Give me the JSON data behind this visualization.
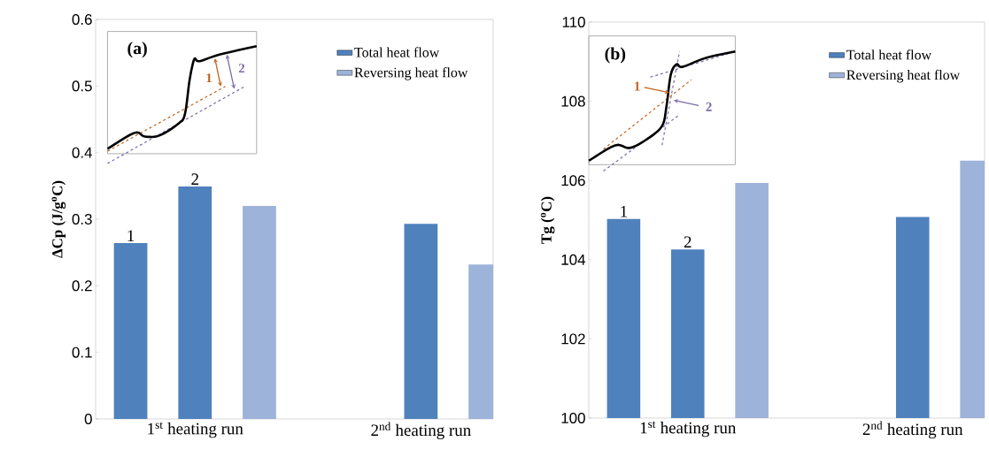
{
  "chart_data": [
    {
      "type": "bar",
      "ylabel": "**ΔCp (J/g$^{o}$C)**",
      "categories": [
        "1$^{st}$ heating run",
        "2$^{nd}$ heating run"
      ],
      "series": [
        {
          "color": "#4f81bd",
          "values": [
            0.264,
            null
          ]
        },
        {
          "name": "Total heat flow",
          "color": "#4f81bd",
          "values": [
            0.349,
            0.293
          ]
        },
        {
          "name": "Reversing heat flow",
          "color": "#9db3d9",
          "values": [
            0.32,
            0.232
          ]
        }
      ],
      "ylim": [
        0,
        0.6
      ],
      "yticks": [
        0,
        0.1,
        0.2,
        0.3,
        0.4,
        0.5,
        0.6
      ],
      "grid": false,
      "legend": "top right",
      "annotations": [
        "(a)",
        "1",
        "2",
        "1",
        "2"
      ]
    },
    {
      "type": "bar",
      "ylabel": "**Tg ($^{o}$C)**",
      "categories": [
        "1$^{st}$ heating run",
        "2$^{nd}$ heating run"
      ],
      "series": [
        {
          "color": "#4f81bd",
          "values": [
            105.03,
            null
          ]
        },
        {
          "name": "Total heat flow",
          "color": "#4f81bd",
          "values": [
            104.26,
            105.08
          ]
        },
        {
          "name": "Reversing heat flow",
          "color": "#9db3d9",
          "values": [
            105.94,
            106.5
          ]
        }
      ],
      "ylim": [
        100,
        110
      ],
      "yticks": [
        100,
        102,
        104,
        106,
        108,
        110
      ],
      "grid": false,
      "legend": "top right",
      "annotations": [
        "(b)",
        "1",
        "2",
        "1",
        "2"
      ]
    }
  ]
}
